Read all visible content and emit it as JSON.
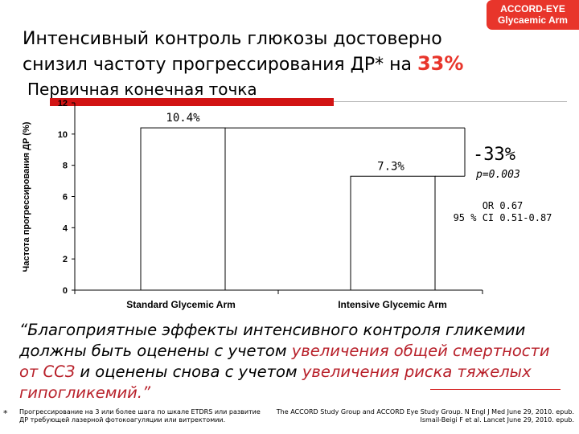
{
  "badge": {
    "line1": "ACCORD-EYE",
    "line2": "Glycaemic Arm"
  },
  "title": {
    "line1": "Интенсивный контроль глюкозы достоверно",
    "line2_pre": "снизил частоту прогрессирования ДР* на ",
    "line2_highlight": "33%"
  },
  "subtitle": "Первичная конечная точка",
  "colors": {
    "accent": "#e8352b",
    "bar1": "#ffffff",
    "bar2": "#ffffff",
    "annotation": "#000000"
  },
  "chart_data": {
    "type": "bar",
    "ylabel": "Частота прогрессирования ДР (%)",
    "ylim": [
      0,
      12
    ],
    "yticks": [
      0,
      2,
      4,
      6,
      8,
      10,
      12
    ],
    "categories": [
      "Standard Glycemic Arm",
      "Intensive Glycemic Arm"
    ],
    "values": [
      10.4,
      7.3
    ],
    "data_labels": [
      "10.4%",
      "7.3%"
    ],
    "grid": false,
    "annotations": {
      "reduction": "-33%",
      "p_value": "p=0.003",
      "or_line1": "OR 0.67",
      "or_line2": "95 % CI 0.51-0.87"
    }
  },
  "quote": {
    "p1": "“Благоприятные эффекты интенсивного контроля гликемии должны быть оценены  с учетом ",
    "p2": "увеличения общей смертности от ССЗ",
    "p3": " и оценены снова с учетом ",
    "p4": "увеличения риска тяжелых гипогликемий.”"
  },
  "footnote": {
    "star": "*",
    "left": "Прогрессирование на 3 или более шага по шкале ETDRS или развитие ДР требующей лазерной фотокоагуляции или витректомии.",
    "right_line1": "The ACCORD Study Group and ACCORD Eye Study Group. N Engl J Med June 29, 2010. epub.",
    "right_line2": "Ismail-Beigi F et al. Lancet June 29, 2010. epub."
  }
}
